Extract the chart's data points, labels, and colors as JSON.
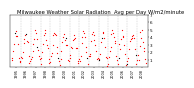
{
  "title": "Milwaukee Weather Solar Radiation  Avg per Day W/m2/minute",
  "title_fontsize": 3.8,
  "background_color": "#ffffff",
  "dot_color": "red",
  "dot_color2": "black",
  "dot_size": 0.8,
  "ylim": [
    0,
    7
  ],
  "ylabel_fontsize": 3.0,
  "xlabel_fontsize": 2.5,
  "grid_color": "#aaaaaa",
  "num_years": 14,
  "months_per_year": 12,
  "start_year": 1995,
  "seasonal_base": [
    0.8,
    1.3,
    2.2,
    3.2,
    4.0,
    4.5,
    4.4,
    3.9,
    3.0,
    2.0,
    1.1,
    0.7
  ],
  "noise_std": 0.4,
  "black_dot_prob": 0.04,
  "seed": 42,
  "ytick_values": [
    1,
    2,
    3,
    4,
    5,
    6,
    7
  ],
  "ytick_labels": [
    "1",
    "2",
    "3",
    "4",
    "5",
    "6",
    "7"
  ]
}
